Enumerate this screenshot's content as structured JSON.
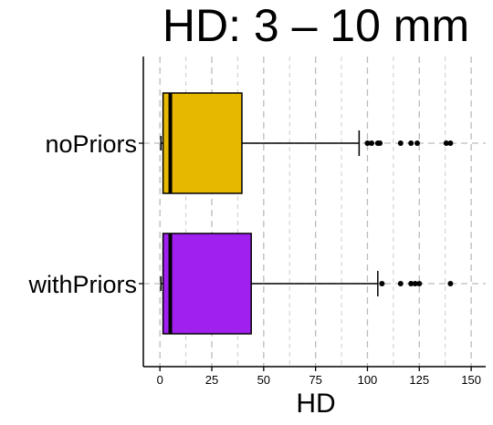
{
  "chart_data": {
    "type": "boxplot",
    "title": "HD: 3 – 10 mm",
    "xlabel": "HD",
    "ylabel": "",
    "orientation": "horizontal",
    "xlim": [
      -8,
      157
    ],
    "x_ticks": [
      0,
      25,
      50,
      75,
      100,
      125,
      150
    ],
    "grid_major_x": [
      0,
      25,
      50,
      75,
      100,
      125,
      150
    ],
    "grid_minor_x": [
      12.5,
      37.5,
      62.5,
      87.5,
      112.5,
      137.5
    ],
    "grid_y": true,
    "categories": [
      "noPriors",
      "withPriors"
    ],
    "series": [
      {
        "category": "noPriors",
        "color": "#E7B800",
        "min": 0.5,
        "q1": 1.5,
        "median": 5,
        "q3": 39.5,
        "whisker_high": 96,
        "outliers": [
          100,
          102,
          105,
          106,
          116,
          121,
          124,
          138,
          140
        ]
      },
      {
        "category": "withPriors",
        "color": "#A020F0",
        "min": 0.5,
        "q1": 1.5,
        "median": 5,
        "q3": 44,
        "whisker_high": 105,
        "outliers": [
          107,
          116,
          121,
          123,
          125,
          140
        ]
      }
    ]
  }
}
